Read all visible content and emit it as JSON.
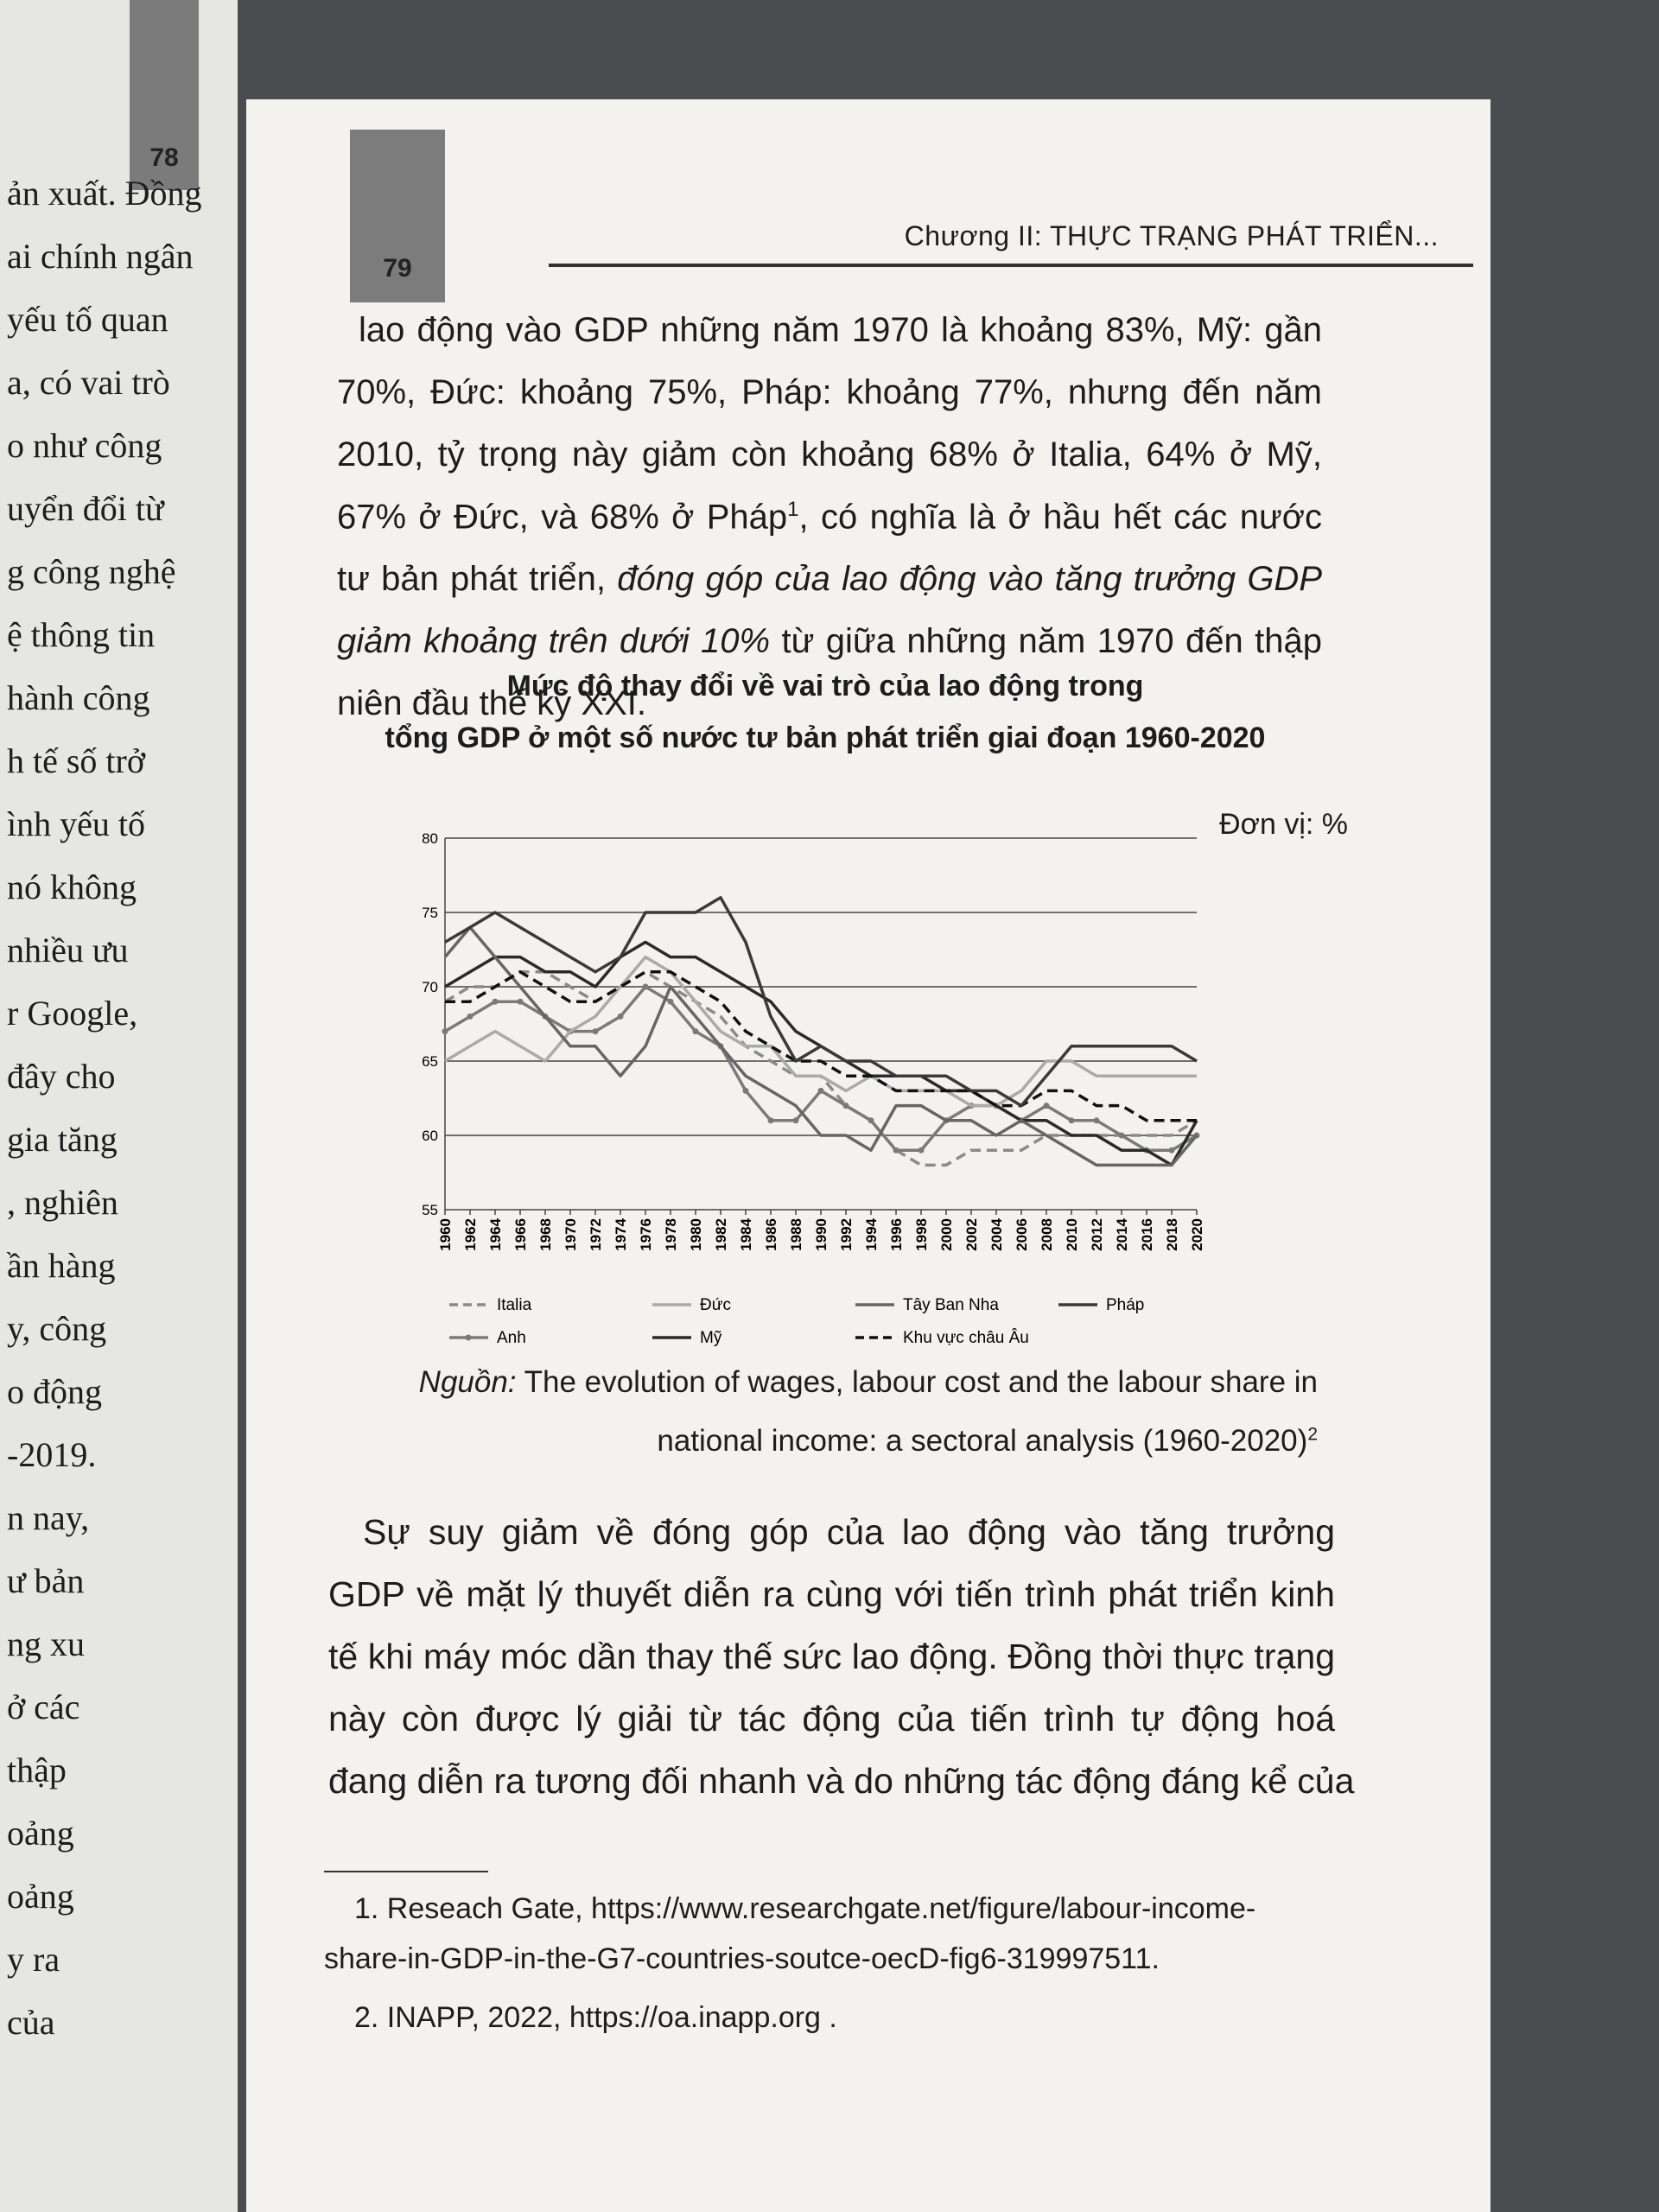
{
  "left_page": {
    "page_number": "78",
    "lines": [
      "ản xuất. Đồng",
      "ai chính ngân",
      "yếu tố quan",
      "a, có vai trò",
      "o như công",
      "uyển đổi từ",
      "g công nghệ",
      "ệ thông tin",
      "hành công",
      "h tế số trở",
      "ình yếu tố",
      "nó không",
      "nhiều ưu",
      "r Google,",
      "đây cho",
      "gia tăng",
      ", nghiên",
      "ần hàng",
      "y, công",
      "o động",
      "-2019.",
      "n nay,",
      "ư bản",
      "ng xu",
      "ở các",
      "thập",
      "oảng",
      "oảng",
      "y ra",
      "của"
    ]
  },
  "header": {
    "page_number": "79",
    "running_title": "Chương II: THỰC TRẠNG PHÁT TRIỂN..."
  },
  "paragraph_1": [
    [
      {
        "text": "lao động vào GDP những năm 1970 là khoảng 83%, Mỹ: gần"
      }
    ],
    [
      {
        "text": "70%, Đức: khoảng 75%, Pháp: khoảng 77%, nhưng đến năm"
      }
    ],
    [
      {
        "text": "2010, tỷ trọng này giảm còn khoảng 68% ở Italia, 64% ở Mỹ,"
      }
    ],
    [
      {
        "text": "67% ở Đức, và 68% ở Pháp"
      },
      {
        "text": "1",
        "style": "sup"
      },
      {
        "text": ", có nghĩa là ở hầu hết các nước"
      }
    ],
    [
      {
        "text": "tư bản phát triển, "
      },
      {
        "text": "đóng góp của lao động vào tăng trưởng GDP",
        "style": "italic"
      }
    ],
    [
      {
        "text": "giảm khoảng trên dưới 10%",
        "style": "italic"
      },
      {
        "text": " từ giữa những năm 1970 đến thập"
      }
    ],
    [
      {
        "text": "niên đầu thế kỷ XXI."
      }
    ]
  ],
  "chart_data": {
    "type": "line",
    "title": [
      "Mức độ thay đổi về vai trò của lao động trong",
      "tổng GDP ở một số nước tư bản phát triển giai đoạn 1960-2020"
    ],
    "unit": "Đơn vị: %",
    "x": [
      1960,
      1962,
      1964,
      1966,
      1968,
      1970,
      1972,
      1974,
      1976,
      1978,
      1980,
      1982,
      1984,
      1986,
      1988,
      1990,
      1992,
      1994,
      1996,
      1998,
      2000,
      2002,
      2004,
      2006,
      2008,
      2010,
      2012,
      2014,
      2016,
      2018,
      2020
    ],
    "xlim": [
      1960,
      2020
    ],
    "xticks": [
      1960,
      1962,
      1964,
      1966,
      1968,
      1970,
      1972,
      1974,
      1976,
      1978,
      1980,
      1982,
      1984,
      1986,
      1988,
      1990,
      1992,
      1994,
      1996,
      1998,
      2000,
      2002,
      2004,
      2006,
      2008,
      2010,
      2012,
      2014,
      2016,
      2018,
      2020
    ],
    "ylim": [
      55,
      80
    ],
    "yticks": [
      55,
      60,
      65,
      70,
      75,
      80
    ],
    "grid": true,
    "series": [
      {
        "name": "Italia",
        "color": "#8a8a8a",
        "dash": true,
        "values": [
          69,
          70,
          70,
          71,
          71,
          70,
          69,
          70,
          71,
          70,
          69,
          68,
          66,
          65,
          64,
          64,
          62,
          61,
          59,
          58,
          58,
          59,
          59,
          59,
          60,
          60,
          60,
          60,
          60,
          60,
          61
        ]
      },
      {
        "name": "Anh",
        "color": "#7a7a7a",
        "marker": "circle",
        "values": [
          67,
          68,
          69,
          69,
          68,
          67,
          67,
          68,
          70,
          69,
          67,
          66,
          63,
          61,
          61,
          63,
          62,
          61,
          59,
          59,
          61,
          62,
          62,
          61,
          62,
          61,
          61,
          60,
          59,
          59,
          60
        ]
      },
      {
        "name": "Đức",
        "color": "#aaaaaa",
        "values": [
          65,
          66,
          67,
          66,
          65,
          67,
          68,
          70,
          72,
          71,
          69,
          67,
          66,
          66,
          64,
          64,
          63,
          64,
          63,
          63,
          63,
          62,
          62,
          63,
          65,
          65,
          64,
          64,
          64,
          64,
          64
        ]
      },
      {
        "name": "Mỹ",
        "color": "#2a2a2a",
        "values": [
          70,
          71,
          72,
          72,
          71,
          71,
          70,
          72,
          73,
          72,
          72,
          71,
          70,
          69,
          67,
          66,
          65,
          64,
          64,
          64,
          63,
          63,
          62,
          61,
          61,
          60,
          60,
          59,
          59,
          58,
          61
        ]
      },
      {
        "name": "Tây Ban Nha",
        "color": "#666666",
        "values": [
          72,
          74,
          72,
          70,
          68,
          66,
          66,
          64,
          66,
          70,
          68,
          66,
          64,
          63,
          62,
          60,
          60,
          59,
          62,
          62,
          61,
          61,
          60,
          61,
          60,
          59,
          58,
          58,
          58,
          58,
          60
        ]
      },
      {
        "name": "Khu vực châu Âu",
        "color": "#111111",
        "dash": true,
        "values": [
          69,
          69,
          70,
          71,
          70,
          69,
          69,
          70,
          71,
          71,
          70,
          69,
          67,
          66,
          65,
          65,
          64,
          64,
          63,
          63,
          63,
          63,
          62,
          62,
          63,
          63,
          62,
          62,
          61,
          61,
          61
        ]
      },
      {
        "name": "Pháp",
        "color": "#3a3a3a",
        "values": [
          73,
          74,
          75,
          74,
          73,
          72,
          71,
          72,
          75,
          75,
          75,
          76,
          73,
          68,
          65,
          66,
          65,
          65,
          64,
          64,
          64,
          63,
          63,
          62,
          64,
          66,
          66,
          66,
          66,
          66,
          65
        ]
      }
    ]
  },
  "source": [
    [
      {
        "text": "Nguồn:",
        "style": "italic"
      },
      {
        "text": " The evolution of wages, labour cost and the labour share in"
      }
    ],
    [
      {
        "text": "national income: a sectoral analysis (1960-2020)"
      },
      {
        "text": "2",
        "style": "sup"
      }
    ]
  ],
  "paragraph_2": [
    "Sự suy giảm về đóng góp của lao động vào tăng trưởng",
    "GDP về mặt lý thuyết diễn ra cùng với tiến trình phát triển kinh",
    "tế khi máy móc dần thay thế sức lao động. Đồng thời thực trạng",
    "này còn được lý giải từ tác động của tiến trình tự động hoá",
    "đang diễn ra tương đối nhanh và do những tác động đáng kể của"
  ],
  "footnotes": [
    [
      "1. Reseach Gate, https://www.researchgate.net/figure/labour-income-",
      "share-in-GDP-in-the-G7-countries-soutce-oecD-fig6-319997511."
    ],
    [
      "2. INAPP, 2022, https://oa.inapp.org ."
    ]
  ]
}
